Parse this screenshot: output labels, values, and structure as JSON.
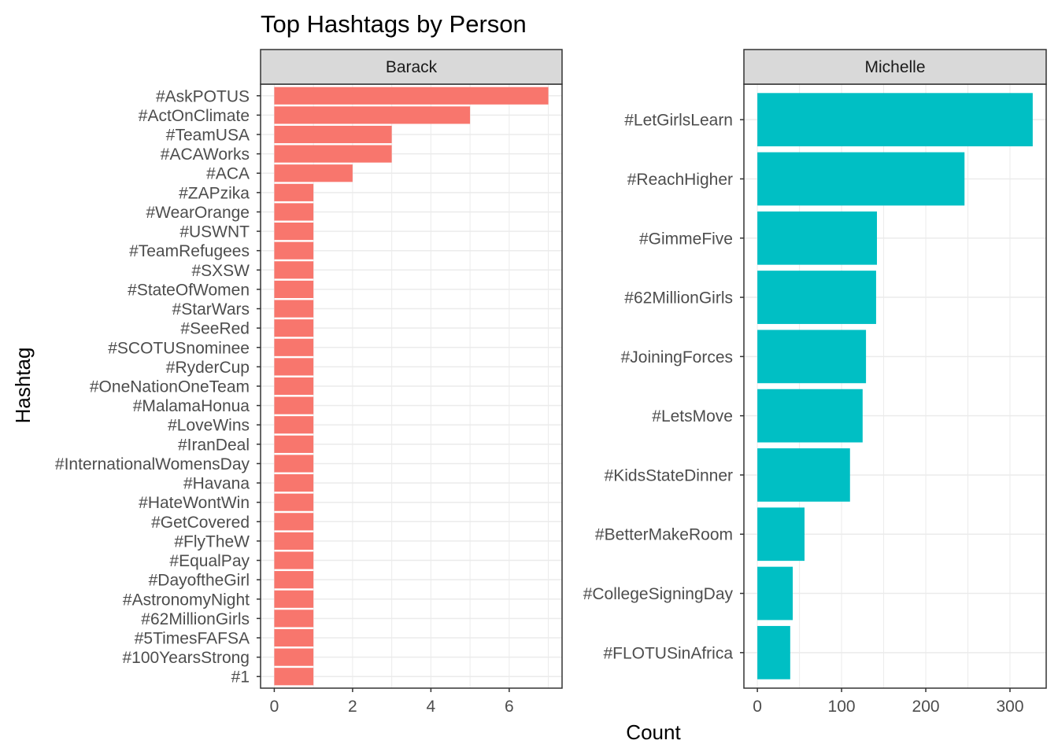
{
  "title": "Top Hashtags by Person",
  "xlabel": "Count",
  "ylabel": "Hashtag",
  "colors": {
    "barack": "#F8766D",
    "michelle": "#00BFC4",
    "grid": "#ebebeb",
    "strip": "#d9d9d9",
    "border": "#333333"
  },
  "chart_data": [
    {
      "type": "bar",
      "orientation": "horizontal",
      "facet": "Barack",
      "xlim": [
        -0.35,
        7.35
      ],
      "xticks": [
        0,
        2,
        4,
        6
      ],
      "grid": true,
      "categories": [
        "#AskPOTUS",
        "#ActOnClimate",
        "#TeamUSA",
        "#ACAWorks",
        "#ACA",
        "#ZAPzika",
        "#WearOrange",
        "#USWNT",
        "#TeamRefugees",
        "#SXSW",
        "#StateOfWomen",
        "#StarWars",
        "#SeeRed",
        "#SCOTUSnominee",
        "#RyderCup",
        "#OneNationOneTeam",
        "#MalamaHonua",
        "#LoveWins",
        "#IranDeal",
        "#InternationalWomensDay",
        "#Havana",
        "#HateWontWin",
        "#GetCovered",
        "#FlyTheW",
        "#EqualPay",
        "#DayoftheGirl",
        "#AstronomyNight",
        "#62MillionGirls",
        "#5TimesFAFSA",
        "#100YearsStrong",
        "#1"
      ],
      "values": [
        7,
        5,
        3,
        3,
        2,
        1,
        1,
        1,
        1,
        1,
        1,
        1,
        1,
        1,
        1,
        1,
        1,
        1,
        1,
        1,
        1,
        1,
        1,
        1,
        1,
        1,
        1,
        1,
        1,
        1,
        1
      ]
    },
    {
      "type": "bar",
      "orientation": "horizontal",
      "facet": "Michelle",
      "xlim": [
        -16,
        343
      ],
      "xticks": [
        0,
        100,
        200,
        300
      ],
      "grid": true,
      "categories": [
        "#LetGirlsLearn",
        "#ReachHigher",
        "#GimmeFive",
        "#62MillionGirls",
        "#JoiningForces",
        "#LetsMove",
        "#KidsStateDinner",
        "#BetterMakeRoom",
        "#CollegeSigningDay",
        "#FLOTUSinAfrica"
      ],
      "values": [
        327,
        246,
        142,
        141,
        129,
        125,
        110,
        56,
        42,
        39
      ]
    }
  ]
}
